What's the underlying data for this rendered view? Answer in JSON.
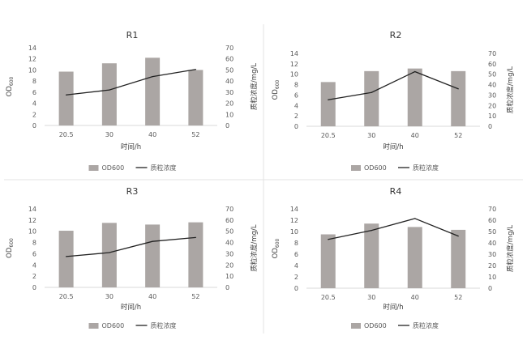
{
  "chart_data": [
    {
      "type": "bar+line",
      "title": "R1",
      "categories": [
        "20.5",
        "30",
        "40",
        "52"
      ],
      "xlabel": "时间/h",
      "ylabel_left": "OD600",
      "ylabel_left_sub": "600",
      "ylabel_left_base": "OD",
      "ylabel_right": "质粒浓度/mg/L",
      "ylim_left": [
        0,
        14
      ],
      "yticks_left": [
        0,
        2,
        4,
        6,
        8,
        10,
        12,
        14
      ],
      "ylim_right": [
        0,
        70
      ],
      "yticks_right": [
        0,
        10,
        20,
        30,
        40,
        50,
        60,
        70
      ],
      "series": [
        {
          "name": "OD600",
          "kind": "bar",
          "axis": "left",
          "color": "#aba6a4",
          "values": [
            9.7,
            11.2,
            12.2,
            10.0
          ]
        },
        {
          "name": "质粒浓度",
          "kind": "line",
          "axis": "right",
          "color": "#222222",
          "values": [
            27.5,
            32,
            44,
            50.5
          ]
        }
      ]
    },
    {
      "type": "bar+line",
      "title": "R2",
      "categories": [
        "20.5",
        "30",
        "40",
        "52"
      ],
      "xlabel": "时间/h",
      "ylabel_left": "OD600",
      "ylabel_left_sub": "600",
      "ylabel_left_base": "OD",
      "ylabel_right": "质粒浓度/mg/L",
      "ylim_left": [
        0,
        14
      ],
      "yticks_left": [
        0,
        2,
        4,
        6,
        8,
        10,
        12,
        14
      ],
      "ylim_right": [
        0,
        70
      ],
      "yticks_right": [
        0,
        10,
        20,
        30,
        40,
        50,
        60,
        70
      ],
      "series": [
        {
          "name": "OD600",
          "kind": "bar",
          "axis": "left",
          "color": "#aba6a4",
          "values": [
            8.5,
            10.6,
            11.1,
            10.6
          ]
        },
        {
          "name": "质粒浓度",
          "kind": "line",
          "axis": "right",
          "color": "#222222",
          "values": [
            25.5,
            32.5,
            52.5,
            36
          ]
        }
      ]
    },
    {
      "type": "bar+line",
      "title": "R3",
      "categories": [
        "20.5",
        "30",
        "40",
        "52"
      ],
      "xlabel": "时间/h",
      "ylabel_left": "OD600",
      "ylabel_left_sub": "600",
      "ylabel_left_base": "OD",
      "ylabel_right": "质粒浓度/mg/L",
      "ylim_left": [
        0,
        14
      ],
      "yticks_left": [
        0,
        2,
        4,
        6,
        8,
        10,
        12,
        14
      ],
      "ylim_right": [
        0,
        70
      ],
      "yticks_right": [
        0,
        10,
        20,
        30,
        40,
        50,
        60,
        70
      ],
      "series": [
        {
          "name": "OD600",
          "kind": "bar",
          "axis": "left",
          "color": "#aba6a4",
          "values": [
            10.1,
            11.5,
            11.2,
            11.6
          ]
        },
        {
          "name": "质粒浓度",
          "kind": "line",
          "axis": "right",
          "color": "#222222",
          "values": [
            27.5,
            31,
            41,
            44.5
          ]
        }
      ]
    },
    {
      "type": "bar+line",
      "title": "R4",
      "categories": [
        "20.5",
        "30",
        "40",
        "52"
      ],
      "xlabel": "时间/h",
      "ylabel_left": "OD600",
      "ylabel_left_sub": "600",
      "ylabel_left_base": "OD",
      "ylabel_right": "质粒浓度/mg/L",
      "ylim_left": [
        0,
        14
      ],
      "yticks_left": [
        0,
        2,
        4,
        6,
        8,
        10,
        12,
        14
      ],
      "ylim_right": [
        0,
        70
      ],
      "yticks_right": [
        0,
        10,
        20,
        30,
        40,
        50,
        60,
        70
      ],
      "series": [
        {
          "name": "OD600",
          "kind": "bar",
          "axis": "left",
          "color": "#aba6a4",
          "values": [
            9.5,
            11.4,
            10.8,
            10.3
          ]
        },
        {
          "name": "质粒浓度",
          "kind": "line",
          "axis": "right",
          "color": "#222222",
          "values": [
            43,
            51,
            61.5,
            46
          ]
        }
      ]
    }
  ]
}
